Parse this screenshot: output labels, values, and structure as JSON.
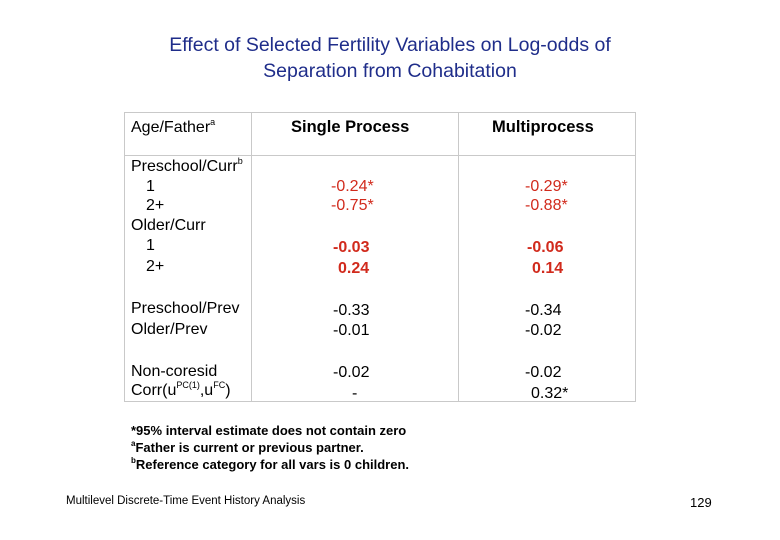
{
  "title": {
    "line1": "Effect of Selected Fertility Variables on Log-odds of",
    "line2": "Separation from Cohabitation"
  },
  "table": {
    "headers": {
      "variable": "Age/Father",
      "variable_sup": "a",
      "single": "Single Process",
      "multi": "Multiprocess"
    },
    "rows": {
      "preschool_curr": {
        "label": "Preschool/Curr",
        "sup": "b"
      },
      "pc_1": {
        "label": "1",
        "single": "-0.24*",
        "multi": "-0.29*"
      },
      "pc_2": {
        "label": "2+",
        "single": "-0.75*",
        "multi": "-0.88*"
      },
      "older_curr": {
        "label": "Older/Curr"
      },
      "oc_1": {
        "label": "1",
        "single": "-0.03",
        "multi": "-0.06"
      },
      "oc_2": {
        "label": "2+",
        "single": "0.24",
        "multi": "0.14"
      },
      "preschool_prev": {
        "label": "Preschool/Prev",
        "single": "-0.33",
        "multi": "-0.34"
      },
      "older_prev": {
        "label": "Older/Prev",
        "single": "-0.01",
        "multi": "-0.02"
      },
      "non_coresid": {
        "label": "Non-coresid",
        "single": "-0.02",
        "multi": "-0.02"
      },
      "corr": {
        "label_pre": "Corr(u",
        "sup1": "PC(1)",
        "label_mid": ",u",
        "sup2": "FC",
        "label_post": ")",
        "single": "-",
        "multi": "0.32*"
      }
    }
  },
  "notes": {
    "note1": "*95% interval estimate does not contain zero",
    "note2_sup": "a",
    "note2": "Father is current or previous partner.",
    "note3_sup": "b",
    "note3": "Reference category for all vars is 0 children."
  },
  "footer": {
    "left": "Multilevel Discrete-Time Event History Analysis",
    "page": "129"
  },
  "colors": {
    "title": "#1f2d8a",
    "highlight": "#d12a1c",
    "grid": "#c9c9c9"
  }
}
